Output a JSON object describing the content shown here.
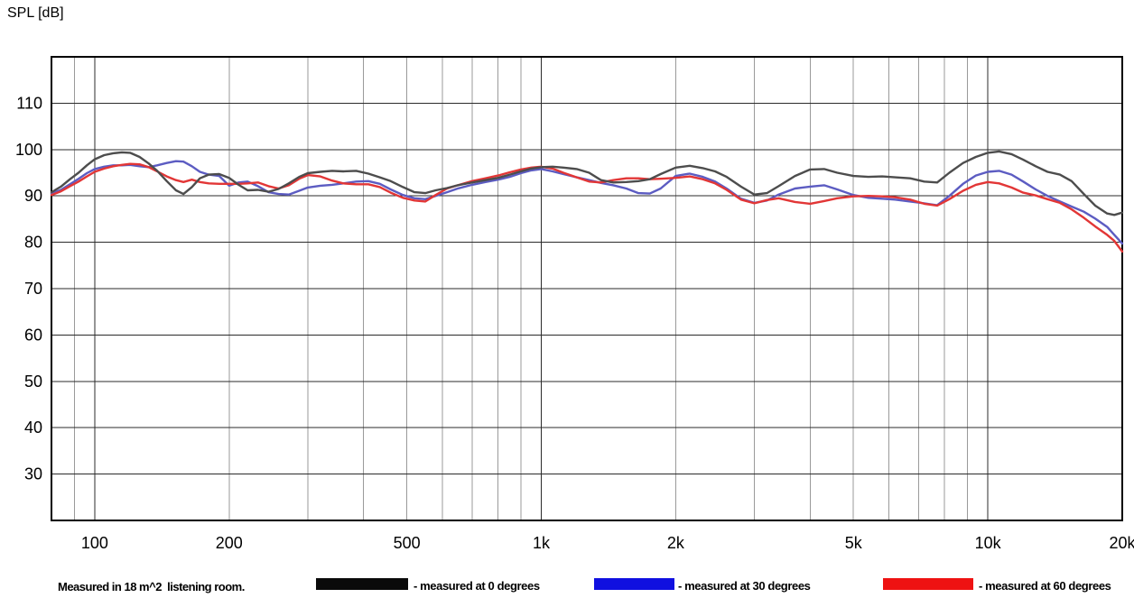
{
  "chart_data": {
    "type": "line",
    "title": "SPL [dB]",
    "x_axis": {
      "scale": "log",
      "unit": "Hz",
      "min": 80,
      "max": 20000,
      "ticks": [
        {
          "f": 100,
          "label": "100"
        },
        {
          "f": 200,
          "label": "200"
        },
        {
          "f": 500,
          "label": "500"
        },
        {
          "f": 1000,
          "label": "1k"
        },
        {
          "f": 2000,
          "label": "2k"
        },
        {
          "f": 5000,
          "label": "5k"
        },
        {
          "f": 10000,
          "label": "10k"
        },
        {
          "f": 20000,
          "label": "20k"
        }
      ],
      "gridlines_minor": [
        90,
        200,
        300,
        400,
        500,
        600,
        700,
        800,
        900,
        2000,
        3000,
        4000,
        5000,
        6000,
        7000,
        8000,
        9000
      ],
      "gridlines_major": [
        100,
        1000,
        10000
      ]
    },
    "y_axis": {
      "title": "SPL [dB]",
      "min": 20,
      "max": 120,
      "ticks": [
        110,
        100,
        90,
        80,
        70,
        60,
        50,
        40,
        30
      ]
    },
    "grid": {
      "minor_color": "#9a9a9a",
      "major_color": "#2b2b2b",
      "frame_color": "#000000"
    },
    "x": [
      80,
      84,
      88,
      92,
      96,
      100,
      105,
      110,
      115,
      120,
      126,
      132,
      138,
      145,
      152,
      158,
      165,
      172,
      180,
      190,
      200,
      210,
      220,
      232,
      245,
      258,
      272,
      287,
      300,
      320,
      340,
      360,
      385,
      410,
      435,
      460,
      490,
      520,
      550,
      580,
      615,
      650,
      700,
      750,
      800,
      850,
      900,
      950,
      1000,
      1060,
      1120,
      1200,
      1280,
      1360,
      1450,
      1550,
      1650,
      1750,
      1850,
      2000,
      2150,
      2300,
      2450,
      2600,
      2800,
      3000,
      3200,
      3400,
      3700,
      4000,
      4300,
      4600,
      5000,
      5400,
      5800,
      6200,
      6700,
      7200,
      7700,
      8200,
      8800,
      9400,
      10000,
      10600,
      11300,
      12000,
      12800,
      13600,
      14500,
      15400,
      16400,
      17400,
      18500,
      19200,
      20000
    ],
    "series": [
      {
        "id": "0-degrees",
        "name": "measured at 0 degrees",
        "color": "#4d4d4d",
        "values": [
          90.8,
          92.0,
          93.6,
          95.0,
          96.6,
          97.9,
          98.8,
          99.2,
          99.4,
          99.3,
          98.4,
          97.0,
          95.4,
          93.2,
          91.2,
          90.4,
          91.9,
          93.8,
          94.6,
          94.7,
          93.9,
          92.4,
          91.2,
          91.3,
          90.9,
          91.5,
          92.7,
          94.1,
          94.9,
          95.2,
          95.4,
          95.3,
          95.4,
          94.8,
          94.0,
          93.2,
          91.9,
          90.8,
          90.6,
          91.2,
          91.7,
          92.3,
          92.9,
          93.4,
          93.9,
          94.6,
          95.3,
          95.9,
          96.2,
          96.3,
          96.1,
          95.8,
          95.0,
          93.4,
          92.9,
          93.0,
          93.2,
          93.6,
          94.7,
          96.1,
          96.5,
          96.0,
          95.3,
          94.1,
          92.0,
          90.3,
          90.6,
          92.1,
          94.3,
          95.7,
          95.8,
          95.0,
          94.3,
          94.1,
          94.2,
          94.0,
          93.8,
          93.1,
          92.9,
          95.0,
          97.1,
          98.4,
          99.3,
          99.6,
          99.0,
          97.8,
          96.4,
          95.2,
          94.6,
          93.2,
          90.4,
          87.9,
          86.2,
          85.9,
          86.4
        ]
      },
      {
        "id": "30-degrees",
        "name": "measured at 30 degrees",
        "color": "#5c5cc2",
        "values": [
          90.5,
          91.3,
          92.5,
          93.7,
          94.9,
          95.8,
          96.3,
          96.6,
          96.6,
          96.7,
          96.4,
          96.2,
          96.6,
          97.1,
          97.5,
          97.4,
          96.4,
          95.2,
          94.6,
          94.3,
          92.2,
          92.9,
          93.1,
          92.1,
          90.8,
          90.4,
          90.3,
          91.1,
          91.8,
          92.2,
          92.4,
          92.7,
          93.1,
          93.2,
          92.6,
          91.4,
          90.2,
          89.5,
          89.3,
          90.0,
          90.8,
          91.6,
          92.4,
          93.0,
          93.5,
          94.1,
          94.9,
          95.5,
          95.8,
          95.3,
          94.7,
          94.0,
          93.4,
          92.8,
          92.3,
          91.6,
          90.6,
          90.5,
          91.6,
          94.3,
          94.8,
          94.1,
          93.1,
          91.6,
          89.4,
          88.5,
          89.0,
          90.3,
          91.6,
          92.0,
          92.3,
          91.4,
          90.2,
          89.6,
          89.4,
          89.2,
          88.8,
          88.4,
          88.0,
          90.0,
          92.6,
          94.4,
          95.2,
          95.4,
          94.6,
          93.1,
          91.4,
          90.0,
          88.8,
          87.7,
          86.6,
          85.1,
          83.3,
          81.6,
          79.7
        ]
      },
      {
        "id": "60-degrees",
        "name": "measured at 60 degrees",
        "color": "#e23636",
        "values": [
          90.2,
          91.0,
          92.1,
          93.1,
          94.2,
          95.2,
          95.9,
          96.4,
          96.7,
          96.9,
          96.8,
          96.2,
          95.3,
          94.2,
          93.4,
          93.0,
          93.5,
          93.0,
          92.7,
          92.6,
          92.6,
          92.6,
          92.7,
          92.9,
          92.1,
          91.6,
          92.3,
          93.7,
          94.5,
          94.2,
          93.3,
          92.7,
          92.5,
          92.5,
          91.9,
          90.7,
          89.6,
          89.0,
          88.8,
          90.2,
          91.6,
          92.3,
          93.2,
          93.8,
          94.4,
          95.1,
          95.7,
          96.1,
          96.3,
          95.9,
          95.0,
          94.0,
          93.1,
          92.9,
          93.4,
          93.8,
          93.8,
          93.6,
          93.7,
          93.9,
          94.2,
          93.6,
          92.7,
          91.3,
          89.2,
          88.4,
          89.1,
          89.5,
          88.7,
          88.3,
          88.9,
          89.5,
          89.9,
          90.0,
          89.9,
          89.7,
          89.2,
          88.3,
          87.9,
          89.3,
          91.1,
          92.4,
          93.0,
          92.7,
          91.8,
          90.7,
          90.1,
          89.3,
          88.5,
          87.1,
          85.3,
          83.4,
          81.6,
          80.3,
          78.0
        ]
      }
    ],
    "note": "Measured in 18 m^2  listening room."
  },
  "legend": {
    "note": "Measured in 18 m^2  listening room.",
    "items": [
      {
        "label": "- measured at 0 degrees",
        "swatch_color": "#0a0a0a"
      },
      {
        "label": "- measured at 30 degrees",
        "swatch_color": "#1010e0"
      },
      {
        "label": "- measured at 60 degrees",
        "swatch_color": "#ee1212"
      }
    ]
  }
}
